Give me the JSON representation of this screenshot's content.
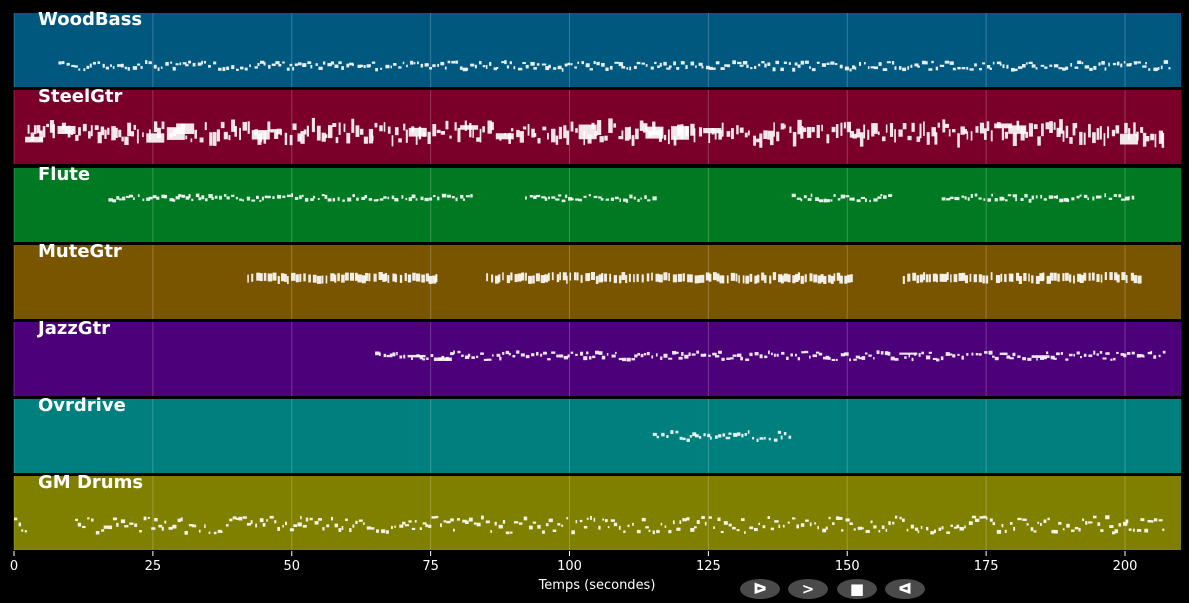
{
  "chart_data": {
    "type": "piano-roll",
    "xlabel": "Temps (secondes)",
    "xlim": [
      0,
      210
    ],
    "xticks": [
      0,
      25,
      50,
      75,
      100,
      125,
      150,
      175,
      200
    ],
    "grid": true,
    "tracks": [
      {
        "name": "WoodBass",
        "color": "#00587f",
        "active_ranges": [
          [
            8,
            208
          ]
        ]
      },
      {
        "name": "SteelGtr",
        "color": "#7a0029",
        "active_ranges": [
          [
            2,
            207
          ]
        ]
      },
      {
        "name": "Flute",
        "color": "#007a22",
        "active_ranges": [
          [
            17,
            83
          ],
          [
            92,
            115
          ],
          [
            140,
            158
          ],
          [
            167,
            202
          ]
        ]
      },
      {
        "name": "MuteGtr",
        "color": "#7a5500",
        "active_ranges": [
          [
            42,
            76
          ],
          [
            85,
            151
          ],
          [
            160,
            203
          ]
        ]
      },
      {
        "name": "JazzGtr",
        "color": "#4c007a",
        "active_ranges": [
          [
            65,
            207
          ]
        ]
      },
      {
        "name": "Ovrdrive",
        "color": "#007f7f",
        "active_ranges": [
          [
            115,
            140
          ]
        ]
      },
      {
        "name": "GM Drums",
        "color": "#7f7f00",
        "active_ranges": [
          [
            0,
            2
          ],
          [
            11,
            207
          ]
        ]
      }
    ]
  },
  "controls": {
    "buttons": [
      {
        "name": "rewind",
        "glyph": "ᐅ"
      },
      {
        "name": "forward",
        "glyph": ">"
      },
      {
        "name": "stop",
        "glyph": "■"
      },
      {
        "name": "back",
        "glyph": "ᐊ"
      }
    ]
  }
}
